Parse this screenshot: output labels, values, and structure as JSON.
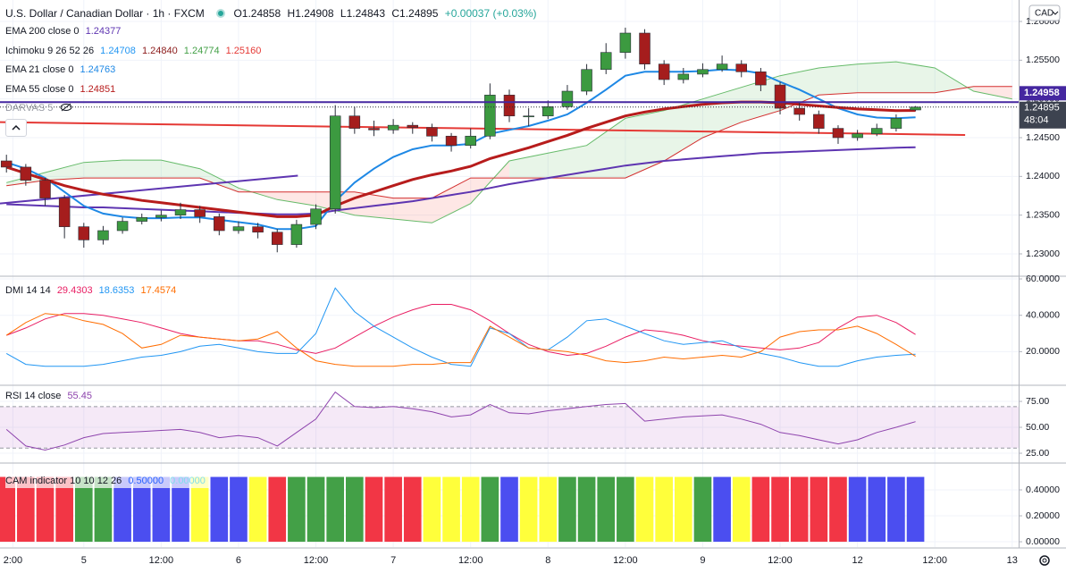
{
  "chart_data": [
    {
      "type": "candlestick",
      "title": "U.S. Dollar / Canadian Dollar · 1h · FXCM",
      "ohlc_labels": [
        "O",
        "H",
        "L",
        "C"
      ],
      "change": "+0.00037 (+0.03%)",
      "currency": "CAD",
      "countdown": "48:04",
      "x": [
        -12,
        -9,
        -6,
        -3,
        0,
        3,
        6,
        9,
        12,
        15,
        18,
        21,
        24,
        27,
        30,
        33,
        36,
        39,
        42,
        45,
        48,
        51,
        54,
        57,
        60,
        63,
        66,
        69,
        72,
        75,
        78,
        81,
        84,
        87,
        90,
        93,
        96,
        99,
        102,
        105,
        108,
        111,
        114,
        117,
        120,
        123,
        126,
        129
      ],
      "open": [
        1.242,
        1.2412,
        1.2395,
        1.2372,
        1.2335,
        1.2318,
        1.233,
        1.2342,
        1.2347,
        1.235,
        1.2357,
        1.2348,
        1.233,
        1.2335,
        1.2328,
        1.2312,
        1.2338,
        1.2358,
        1.2478,
        1.2462,
        1.246,
        1.2466,
        1.2463,
        1.2452,
        1.244,
        1.2452,
        1.2505,
        1.2478,
        1.2478,
        1.249,
        1.251,
        1.2538,
        1.256,
        1.2585,
        1.2545,
        1.2525,
        1.2532,
        1.2538,
        1.2545,
        1.2535,
        1.2518,
        1.2488,
        1.248,
        1.2462,
        1.245,
        1.2455,
        1.2462,
        1.24858
      ],
      "high": [
        1.2428,
        1.2416,
        1.2398,
        1.2376,
        1.234,
        1.2336,
        1.2347,
        1.2352,
        1.2356,
        1.2366,
        1.2362,
        1.2352,
        1.2342,
        1.234,
        1.2332,
        1.2344,
        1.2364,
        1.2492,
        1.249,
        1.2472,
        1.2474,
        1.247,
        1.2468,
        1.2456,
        1.2462,
        1.252,
        1.2512,
        1.2488,
        1.2498,
        1.2518,
        1.2545,
        1.2572,
        1.2592,
        1.259,
        1.255,
        1.254,
        1.2546,
        1.2556,
        1.255,
        1.254,
        1.2522,
        1.2495,
        1.2485,
        1.2466,
        1.246,
        1.2468,
        1.248,
        1.24908
      ],
      "low": [
        1.2405,
        1.2388,
        1.2362,
        1.232,
        1.2308,
        1.2312,
        1.2326,
        1.2338,
        1.2342,
        1.2345,
        1.234,
        1.2324,
        1.2326,
        1.232,
        1.2302,
        1.2308,
        1.2332,
        1.2352,
        1.2455,
        1.2452,
        1.2455,
        1.2455,
        1.2445,
        1.2432,
        1.2436,
        1.2448,
        1.247,
        1.2465,
        1.2474,
        1.2486,
        1.2505,
        1.2532,
        1.2552,
        1.2538,
        1.2518,
        1.252,
        1.2528,
        1.2535,
        1.2528,
        1.251,
        1.248,
        1.2472,
        1.2455,
        1.2442,
        1.2446,
        1.2452,
        1.2458,
        1.24843
      ],
      "close": [
        1.2412,
        1.2395,
        1.2372,
        1.2335,
        1.2318,
        1.233,
        1.2342,
        1.2347,
        1.235,
        1.2357,
        1.2348,
        1.233,
        1.2335,
        1.2328,
        1.2312,
        1.2338,
        1.2358,
        1.2478,
        1.2462,
        1.246,
        1.2466,
        1.2463,
        1.2452,
        1.244,
        1.2452,
        1.2505,
        1.2478,
        1.2478,
        1.249,
        1.251,
        1.2538,
        1.256,
        1.2585,
        1.2545,
        1.2525,
        1.2532,
        1.2538,
        1.2545,
        1.2535,
        1.2518,
        1.2488,
        1.248,
        1.2462,
        1.245,
        1.2455,
        1.2462,
        1.2475,
        1.24895
      ],
      "up_color": "#3c9a40",
      "down_color": "#a51d1d",
      "series": [
        {
          "name": "EMA 200 close 0",
          "color": "#5e35b1",
          "width": 2,
          "values": [
            1.2364,
            1.2363,
            1.2362,
            1.2361,
            1.236,
            1.236,
            1.2359,
            1.2358,
            1.2357,
            1.2356,
            1.2355,
            1.2354,
            1.2353,
            1.2352,
            1.2351,
            1.2351,
            1.2352,
            1.2356,
            1.2359,
            1.2362,
            1.2365,
            1.2368,
            1.2372,
            1.2376,
            1.238,
            1.2385,
            1.239,
            1.2394,
            1.2398,
            1.2402,
            1.2406,
            1.241,
            1.2414,
            1.2417,
            1.242,
            1.2422,
            1.2424,
            1.2426,
            1.2428,
            1.243,
            1.2431,
            1.2432,
            1.2433,
            1.2434,
            1.2435,
            1.2436,
            1.2437,
            1.24377
          ]
        },
        {
          "name": "EMA 21 close 0",
          "color": "#1e88e5",
          "width": 2,
          "values": [
            1.2418,
            1.241,
            1.2398,
            1.238,
            1.2362,
            1.2352,
            1.2348,
            1.2346,
            1.2346,
            1.2347,
            1.2347,
            1.2344,
            1.2341,
            1.2338,
            1.2332,
            1.2332,
            1.2336,
            1.2368,
            1.2392,
            1.241,
            1.2425,
            1.2435,
            1.244,
            1.244,
            1.2442,
            1.2455,
            1.246,
            1.2465,
            1.2472,
            1.248,
            1.2495,
            1.2512,
            1.253,
            1.2535,
            1.2535,
            1.2535,
            1.2536,
            1.2538,
            1.2537,
            1.2533,
            1.2522,
            1.2512,
            1.25,
            1.2488,
            1.248,
            1.2476,
            1.2475,
            1.24763
          ]
        },
        {
          "name": "EMA 55 close 0",
          "color": "#b71c1c",
          "width": 3,
          "values": [
            1.2412,
            1.2404,
            1.2396,
            1.2388,
            1.2382,
            1.2377,
            1.2373,
            1.2369,
            1.2366,
            1.2363,
            1.236,
            1.2357,
            1.2354,
            1.2351,
            1.2348,
            1.2348,
            1.235,
            1.2362,
            1.2372,
            1.238,
            1.2388,
            1.2396,
            1.2402,
            1.2407,
            1.2413,
            1.2423,
            1.243,
            1.2437,
            1.2445,
            1.2453,
            1.2462,
            1.247,
            1.2478,
            1.2483,
            1.2487,
            1.249,
            1.2493,
            1.2495,
            1.2496,
            1.2496,
            1.2495,
            1.2493,
            1.2491,
            1.2489,
            1.2487,
            1.2486,
            1.2485,
            1.24851
          ]
        }
      ],
      "ichimoku": {
        "name": "Ichimoku 9 26 52 26",
        "legend_values": [
          "1.24708",
          "1.24840",
          "1.24774",
          "1.25160"
        ],
        "legend_colors": [
          "#2196f3",
          "#8b1a1a",
          "#43a047",
          "#e53935"
        ],
        "x": [
          -12,
          -6,
          0,
          6,
          12,
          18,
          24,
          30,
          36,
          42,
          48,
          54,
          60,
          66,
          72,
          78,
          84,
          90,
          96,
          102,
          108,
          114,
          120,
          126,
          132,
          138,
          144
        ],
        "lead1": [
          1.2392,
          1.2405,
          1.2418,
          1.2421,
          1.2421,
          1.241,
          1.2385,
          1.237,
          1.2362,
          1.235,
          1.2345,
          1.234,
          1.2365,
          1.242,
          1.243,
          1.244,
          1.2475,
          1.2485,
          1.25,
          1.2515,
          1.253,
          1.254,
          1.2545,
          1.2548,
          1.254,
          1.251,
          1.25
        ],
        "lead2": [
          1.2388,
          1.2395,
          1.2398,
          1.2398,
          1.2398,
          1.2398,
          1.238,
          1.238,
          1.238,
          1.238,
          1.2372,
          1.2372,
          1.2398,
          1.2398,
          1.2398,
          1.2398,
          1.2398,
          1.242,
          1.245,
          1.247,
          1.2485,
          1.2505,
          1.2508,
          1.2508,
          1.2508,
          1.2516,
          1.2516
        ],
        "lead1_color": "#66bb6a",
        "lead2_color": "#d32f2f",
        "fill_up": "rgba(76,175,80,0.13)",
        "fill_down": "rgba(244,67,54,0.13)"
      },
      "darvas": {
        "name": "DARVAS 5",
        "level": 1.24958,
        "color": "#4527a0"
      },
      "trendlines": [
        {
          "x": [
            -13,
            136.7
          ],
          "y": [
            1.247,
            1.24535
          ],
          "color": "#e53935"
        },
        {
          "x": [
            -13,
            33.2
          ],
          "y": [
            1.2365,
            1.2401
          ],
          "color": "#5e35b1"
        }
      ],
      "xlim": [
        -13,
        145
      ],
      "ylim": [
        1.22723,
        1.26277
      ],
      "yticks": [
        {
          "value": 1.23,
          "label": "1.23000"
        },
        {
          "value": 1.235,
          "label": "1.23500"
        },
        {
          "value": 1.24,
          "label": "1.24000"
        },
        {
          "value": 1.245,
          "label": "1.24500"
        },
        {
          "value": 1.25,
          "label": "1.25000"
        },
        {
          "value": 1.255,
          "label": "1.25500"
        },
        {
          "value": 1.26,
          "label": "1.26000"
        }
      ],
      "xticks": [
        {
          "value": -11,
          "label": "2:00"
        },
        {
          "value": 0,
          "label": "5"
        },
        {
          "value": 12,
          "label": "12:00"
        },
        {
          "value": 24,
          "label": "6"
        },
        {
          "value": 36,
          "label": "12:00"
        },
        {
          "value": 48,
          "label": "7"
        },
        {
          "value": 60,
          "label": "12:00"
        },
        {
          "value": 72,
          "label": "8"
        },
        {
          "value": 84,
          "label": "12:00"
        },
        {
          "value": 96,
          "label": "9"
        },
        {
          "value": 108,
          "label": "12:00"
        },
        {
          "value": 120,
          "label": "12"
        },
        {
          "value": 132,
          "label": "12:00"
        },
        {
          "value": 144,
          "label": "13"
        }
      ],
      "grid": true
    },
    {
      "type": "line",
      "title": "DMI 14 14",
      "series": [
        {
          "color": "#e91e63",
          "values": [
            29,
            33,
            38,
            41,
            41,
            40,
            38,
            36,
            33,
            30,
            28,
            27,
            26,
            26,
            24,
            21,
            19,
            22,
            28,
            34,
            39,
            43,
            46,
            46,
            43,
            37,
            30,
            24,
            20,
            18,
            19,
            23,
            28,
            32,
            31,
            29,
            26,
            24,
            23,
            22,
            21,
            22,
            25,
            33,
            39,
            40,
            36,
            29.4303
          ]
        },
        {
          "color": "#2196f3",
          "values": [
            19,
            13,
            12,
            12,
            12,
            13,
            15,
            17,
            18,
            20,
            23,
            24,
            22,
            20,
            19,
            19,
            30,
            55,
            42,
            34,
            28,
            22,
            17,
            13,
            12,
            33,
            30,
            22,
            21,
            28,
            37,
            38,
            34,
            30,
            26,
            24,
            25,
            26,
            22,
            19,
            17,
            14,
            12,
            12,
            15,
            17,
            18,
            18.6353
          ]
        },
        {
          "color": "#ff6d00",
          "values": [
            29,
            36,
            41,
            40,
            37,
            35,
            30,
            22,
            24,
            29,
            28,
            27,
            26,
            27,
            31,
            22,
            15,
            13,
            12,
            12,
            12,
            13,
            13,
            14,
            14,
            34,
            28,
            22,
            21,
            20,
            18,
            15,
            14,
            15,
            17,
            16,
            17,
            18,
            17,
            20,
            28,
            31,
            32,
            32,
            34,
            30,
            24,
            17.4574
          ]
        }
      ],
      "ylim": [
        2,
        61
      ],
      "yticks": [
        {
          "value": 20,
          "label": "20.0000"
        },
        {
          "value": 40,
          "label": "40.0000"
        },
        {
          "value": 60,
          "label": "60.0000"
        }
      ],
      "grid": true
    },
    {
      "type": "line",
      "title": "RSI 14 close",
      "series": [
        {
          "color": "#8e44ad",
          "values": [
            48,
            32,
            28,
            33,
            40,
            44,
            45,
            46,
            47,
            48,
            45,
            40,
            42,
            40,
            32,
            45,
            58,
            84,
            70,
            69,
            70,
            68,
            65,
            60,
            62,
            72,
            64,
            63,
            66,
            68,
            70,
            72,
            73,
            56,
            58,
            60,
            61,
            62,
            58,
            53,
            45,
            42,
            38,
            34,
            38,
            45,
            50,
            55.45
          ]
        }
      ],
      "band": [
        30,
        70
      ],
      "band_color": "rgba(156,39,176,0.1)",
      "ylim": [
        16.4,
        89.7
      ],
      "yticks": [
        {
          "value": 25,
          "label": "25.00"
        },
        {
          "value": 50,
          "label": "50.00"
        },
        {
          "value": 75,
          "label": "75.00"
        }
      ],
      "grid": true
    },
    {
      "type": "bar",
      "title": "CAM indicator 10 10 12 26",
      "legend_values": [
        "0.50000",
        "0.00000"
      ],
      "legend_colors": [
        "#2962ff",
        "#80deea"
      ],
      "values": [
        0.5,
        0.5,
        0.5,
        0.5,
        0.5,
        0.5,
        0.5,
        0.5,
        0.5,
        0.5,
        0.5,
        0.5,
        0.5,
        0.5,
        0.5,
        0.5,
        0.5,
        0.5,
        0.5,
        0.5,
        0.5,
        0.5,
        0.5,
        0.5,
        0.5,
        0.5,
        0.5,
        0.5,
        0.5,
        0.5,
        0.5,
        0.5,
        0.5,
        0.5,
        0.5,
        0.5,
        0.5,
        0.5,
        0.5,
        0.5,
        0.5,
        0.5,
        0.5,
        0.5,
        0.5,
        0.5,
        0.5,
        0.5
      ],
      "colors": [
        "#f23645",
        "#f23645",
        "#f23645",
        "#f23645",
        "#43a047",
        "#43a047",
        "#4b4ef0",
        "#4b4ef0",
        "#4b4ef0",
        "#4b4ef0",
        "#ffff3b",
        "#4b4ef0",
        "#4b4ef0",
        "#ffff3b",
        "#f23645",
        "#43a047",
        "#43a047",
        "#43a047",
        "#43a047",
        "#f23645",
        "#f23645",
        "#f23645",
        "#ffff3b",
        "#ffff3b",
        "#ffff3b",
        "#43a047",
        "#4b4ef0",
        "#ffff3b",
        "#ffff3b",
        "#43a047",
        "#43a047",
        "#43a047",
        "#43a047",
        "#ffff3b",
        "#ffff3b",
        "#ffff3b",
        "#43a047",
        "#4b4ef0",
        "#ffff3b",
        "#f23645",
        "#f23645",
        "#f23645",
        "#f23645",
        "#f23645",
        "#4b4ef0",
        "#4b4ef0",
        "#4b4ef0",
        "#4b4ef0"
      ],
      "ylim": [
        -0.041,
        0.6
      ],
      "yticks": [
        {
          "value": 0,
          "label": "0.00000"
        },
        {
          "value": 0.2,
          "label": "0.20000"
        },
        {
          "value": 0.4,
          "label": "0.40000"
        }
      ],
      "grid": true
    }
  ]
}
